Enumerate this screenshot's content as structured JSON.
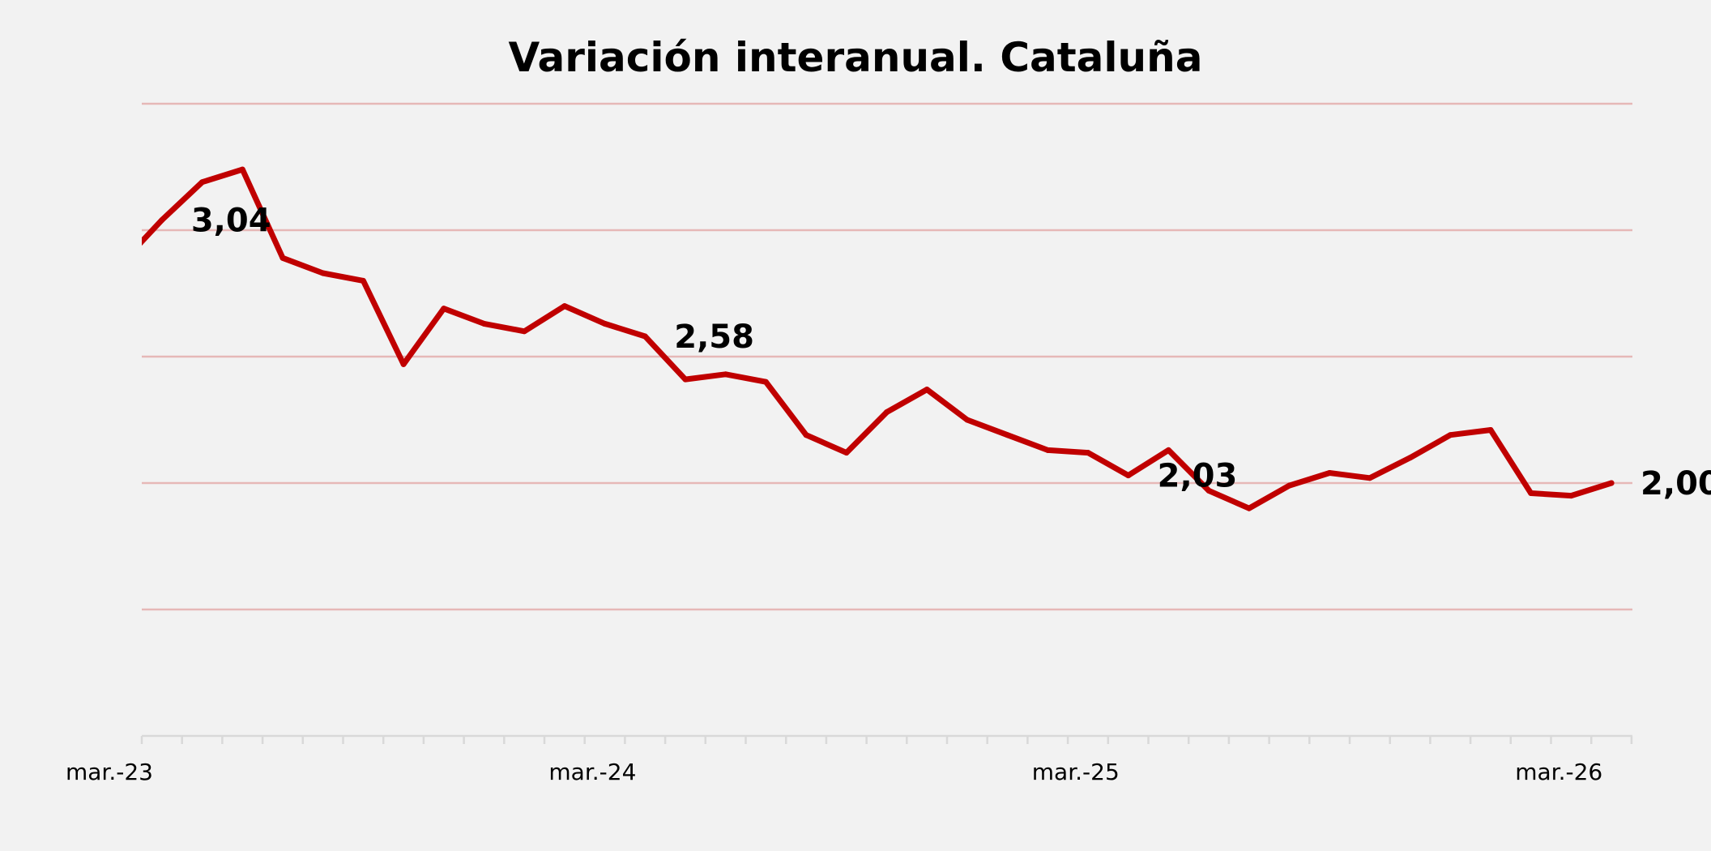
{
  "chart_data": {
    "type": "line",
    "title": "Variación interanual. Cataluña",
    "xlabel": "",
    "ylabel": "",
    "ylim": [
      1.0,
      3.5
    ],
    "y_gridlines": [
      1.0,
      1.5,
      2.0,
      2.5,
      3.0,
      3.5
    ],
    "grid": true,
    "legend": "none",
    "x_tick_labels": [
      "mar.-23",
      "mar.-24",
      "mar.-25",
      "mar.-26"
    ],
    "x_ticks_months": 38,
    "series": [
      {
        "name": "Variación interanual",
        "color": "#c00000",
        "x": [
          "feb.-23",
          "mar.-23",
          "abr.-23",
          "may.-23",
          "jun.-23",
          "jul.-23",
          "ago.-23",
          "sep.-23",
          "oct.-23",
          "nov.-23",
          "dic.-23",
          "ene.-24",
          "feb.-24",
          "mar.-24",
          "abr.-24",
          "may.-24",
          "jun.-24",
          "jul.-24",
          "ago.-24",
          "sep.-24",
          "oct.-24",
          "nov.-24",
          "dic.-24",
          "ene.-25",
          "feb.-25",
          "mar.-25",
          "abr.-25",
          "may.-25",
          "jun.-25",
          "jul.-25",
          "ago.-25",
          "sep.-25",
          "oct.-25",
          "nov.-25",
          "dic.-25",
          "ene.-26",
          "feb.-26",
          "mar.-26"
        ],
        "values": [
          2.87,
          3.04,
          3.19,
          3.24,
          2.89,
          2.83,
          2.8,
          2.47,
          2.69,
          2.63,
          2.6,
          2.7,
          2.63,
          2.58,
          2.41,
          2.43,
          2.4,
          2.19,
          2.12,
          2.28,
          2.37,
          2.25,
          2.19,
          2.13,
          2.12,
          2.03,
          2.13,
          1.97,
          1.9,
          1.99,
          2.04,
          2.02,
          2.1,
          2.19,
          2.21,
          1.96,
          1.95,
          2.0
        ]
      }
    ],
    "annotations": [
      {
        "index": 1,
        "text": "3,04"
      },
      {
        "index": 13,
        "text": "2,58"
      },
      {
        "index": 25,
        "text": "2,03"
      },
      {
        "index": 37,
        "text": "2,00"
      }
    ]
  }
}
